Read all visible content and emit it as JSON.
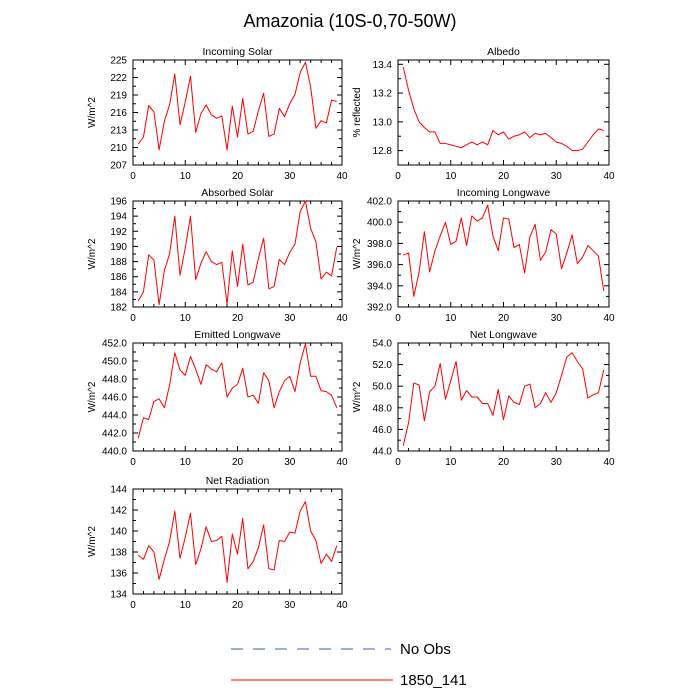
{
  "title": "Amazonia (10S-0,70-50W)",
  "legend": [
    {
      "label": "No Obs",
      "style": "dashed",
      "color": "#3b5bc4"
    },
    {
      "label": "1850_141",
      "style": "solid",
      "color": "#ff0000"
    }
  ],
  "chart_data": [
    {
      "type": "line",
      "title": "Incoming Solar",
      "xlabel": "",
      "ylabel": "W/m^2",
      "xlim": [
        0,
        40
      ],
      "xticks": [
        0,
        10,
        20,
        30,
        40
      ],
      "xtick_labels": [
        "0",
        "10",
        "20",
        "30",
        "40"
      ],
      "ylim": [
        207,
        225
      ],
      "yticks": [
        207,
        210,
        213,
        216,
        219,
        222,
        225
      ],
      "ytick_labels": [
        "207",
        "210",
        "213",
        "216",
        "219",
        "222",
        "225"
      ],
      "x": [
        1,
        2,
        3,
        4,
        5,
        6,
        7,
        8,
        9,
        10,
        11,
        12,
        13,
        14,
        15,
        16,
        17,
        18,
        19,
        20,
        21,
        22,
        23,
        24,
        25,
        26,
        27,
        28,
        29,
        30,
        31,
        32,
        33,
        34,
        35,
        36,
        37,
        38,
        39
      ],
      "series": [
        {
          "name": "1850_141",
          "values": [
            210.6,
            211.8,
            217.2,
            216.1,
            209.6,
            214.5,
            217.3,
            222.6,
            213.9,
            217.8,
            222.2,
            212.6,
            215.8,
            217.3,
            215.6,
            215.0,
            215.4,
            209.6,
            217.1,
            211.8,
            218.4,
            212.3,
            212.8,
            216.3,
            219.3,
            211.9,
            212.3,
            216.7,
            215.3,
            217.5,
            219.1,
            222.9,
            224.6,
            220.4,
            213.3,
            214.6,
            214.2,
            218.1,
            217.9
          ]
        }
      ]
    },
    {
      "type": "line",
      "title": "Albedo",
      "xlabel": "",
      "ylabel": "% reflected",
      "xlim": [
        0,
        40
      ],
      "xticks": [
        0,
        10,
        20,
        30,
        40
      ],
      "xtick_labels": [
        "0",
        "10",
        "20",
        "30",
        "40"
      ],
      "ylim": [
        12.7,
        13.43
      ],
      "yticks": [
        12.8,
        13.0,
        13.2,
        13.4
      ],
      "ytick_labels": [
        "12.8",
        "13.0",
        "13.2",
        "13.4"
      ],
      "x": [
        1,
        2,
        3,
        4,
        5,
        6,
        7,
        8,
        9,
        10,
        11,
        12,
        13,
        14,
        15,
        16,
        17,
        18,
        19,
        20,
        21,
        22,
        23,
        24,
        25,
        26,
        27,
        28,
        29,
        30,
        31,
        32,
        33,
        34,
        35,
        36,
        37,
        38,
        39
      ],
      "series": [
        {
          "name": "1850_141",
          "values": [
            13.38,
            13.22,
            13.09,
            13.0,
            12.96,
            12.93,
            12.93,
            12.85,
            12.85,
            12.84,
            12.83,
            12.82,
            12.84,
            12.86,
            12.84,
            12.86,
            12.84,
            12.94,
            12.91,
            12.93,
            12.88,
            12.9,
            12.91,
            12.93,
            12.89,
            12.92,
            12.91,
            12.92,
            12.89,
            12.86,
            12.85,
            12.83,
            12.8,
            12.8,
            12.81,
            12.86,
            12.91,
            12.95,
            12.94
          ]
        }
      ]
    },
    {
      "type": "line",
      "title": "Absorbed Solar",
      "xlabel": "",
      "ylabel": "W/m^2",
      "xlim": [
        0,
        40
      ],
      "xticks": [
        0,
        10,
        20,
        30,
        40
      ],
      "xtick_labels": [
        "0",
        "10",
        "20",
        "30",
        "40"
      ],
      "ylim": [
        182,
        196
      ],
      "yticks": [
        182,
        184,
        186,
        188,
        190,
        192,
        194,
        196
      ],
      "ytick_labels": [
        "182",
        "184",
        "186",
        "188",
        "190",
        "192",
        "194",
        "196"
      ],
      "x": [
        1,
        2,
        3,
        4,
        5,
        6,
        7,
        8,
        9,
        10,
        11,
        12,
        13,
        14,
        15,
        16,
        17,
        18,
        19,
        20,
        21,
        22,
        23,
        24,
        25,
        26,
        27,
        28,
        29,
        30,
        31,
        32,
        33,
        34,
        35,
        36,
        37,
        38,
        39
      ],
      "series": [
        {
          "name": "1850_141",
          "values": [
            182.8,
            184.0,
            188.9,
            188.2,
            182.3,
            186.8,
            189.0,
            194.0,
            186.2,
            189.8,
            194.0,
            185.6,
            187.8,
            189.3,
            188.0,
            187.6,
            187.9,
            182.4,
            189.4,
            184.7,
            190.3,
            184.9,
            185.3,
            188.4,
            191.1,
            184.4,
            184.7,
            188.3,
            187.6,
            189.2,
            190.3,
            194.6,
            196.0,
            192.4,
            190.6,
            185.7,
            186.6,
            186.1,
            189.9
          ]
        }
      ]
    },
    {
      "type": "line",
      "title": "Incoming Longwave",
      "xlabel": "",
      "ylabel": "W/m^2",
      "xlim": [
        0,
        40
      ],
      "xticks": [
        0,
        10,
        20,
        30,
        40
      ],
      "xtick_labels": [
        "0",
        "10",
        "20",
        "30",
        "40"
      ],
      "ylim": [
        392,
        402
      ],
      "yticks": [
        392.0,
        394.0,
        396.0,
        398.0,
        400.0,
        402.0
      ],
      "ytick_labels": [
        "392.0",
        "394.0",
        "396.0",
        "398.0",
        "400.0",
        "402.0"
      ],
      "x": [
        1,
        2,
        3,
        4,
        5,
        6,
        7,
        8,
        9,
        10,
        11,
        12,
        13,
        14,
        15,
        16,
        17,
        18,
        19,
        20,
        21,
        22,
        23,
        24,
        25,
        26,
        27,
        28,
        29,
        30,
        31,
        32,
        33,
        34,
        35,
        36,
        37,
        38,
        39
      ],
      "series": [
        {
          "name": "1850_141",
          "values": [
            396.9,
            397.1,
            393.0,
            395.3,
            399.1,
            395.3,
            397.3,
            398.7,
            400.0,
            397.9,
            398.2,
            400.4,
            397.8,
            400.6,
            400.1,
            400.4,
            401.6,
            398.7,
            397.3,
            400.4,
            400.3,
            397.6,
            397.9,
            395.2,
            398.6,
            399.8,
            396.4,
            397.2,
            399.3,
            398.9,
            395.6,
            397.1,
            398.8,
            396.1,
            396.7,
            397.8,
            397.3,
            396.8,
            393.5
          ]
        }
      ]
    },
    {
      "type": "line",
      "title": "Emitted Longwave",
      "xlabel": "",
      "ylabel": "W/m^2",
      "xlim": [
        0,
        40
      ],
      "xticks": [
        0,
        10,
        20,
        30,
        40
      ],
      "xtick_labels": [
        "0",
        "10",
        "20",
        "30",
        "40"
      ],
      "ylim": [
        440,
        452
      ],
      "yticks": [
        440.0,
        442.0,
        444.0,
        446.0,
        448.0,
        450.0,
        452.0
      ],
      "ytick_labels": [
        "440.0",
        "442.0",
        "444.0",
        "446.0",
        "448.0",
        "450.0",
        "452.0"
      ],
      "x": [
        1,
        2,
        3,
        4,
        5,
        6,
        7,
        8,
        9,
        10,
        11,
        12,
        13,
        14,
        15,
        16,
        17,
        18,
        19,
        20,
        21,
        22,
        23,
        24,
        25,
        26,
        27,
        28,
        29,
        30,
        31,
        32,
        33,
        34,
        35,
        36,
        37,
        38,
        39
      ],
      "series": [
        {
          "name": "1850_141",
          "values": [
            441.4,
            443.7,
            443.5,
            445.5,
            445.8,
            444.8,
            447.3,
            450.9,
            449.0,
            448.4,
            450.5,
            449.1,
            447.4,
            449.6,
            449.1,
            448.8,
            449.8,
            446.0,
            447.0,
            447.4,
            449.2,
            446.0,
            446.2,
            445.3,
            448.7,
            447.8,
            444.8,
            446.6,
            447.8,
            448.3,
            446.6,
            449.8,
            451.9,
            448.3,
            448.3,
            446.7,
            446.6,
            446.2,
            444.8
          ]
        }
      ]
    },
    {
      "type": "line",
      "title": "Net Longwave",
      "xlabel": "",
      "ylabel": "W/m^2",
      "xlim": [
        0,
        40
      ],
      "xticks": [
        0,
        10,
        20,
        30,
        40
      ],
      "xtick_labels": [
        "0",
        "10",
        "20",
        "30",
        "40"
      ],
      "ylim": [
        44,
        54
      ],
      "yticks": [
        44.0,
        46.0,
        48.0,
        50.0,
        52.0,
        54.0
      ],
      "ytick_labels": [
        "44.0",
        "46.0",
        "48.0",
        "50.0",
        "52.0",
        "54.0"
      ],
      "x": [
        1,
        2,
        3,
        4,
        5,
        6,
        7,
        8,
        9,
        10,
        11,
        12,
        13,
        14,
        15,
        16,
        17,
        18,
        19,
        20,
        21,
        22,
        23,
        24,
        25,
        26,
        27,
        28,
        29,
        30,
        31,
        32,
        33,
        34,
        35,
        36,
        37,
        38,
        39
      ],
      "series": [
        {
          "name": "1850_141",
          "values": [
            44.5,
            46.6,
            50.3,
            50.1,
            46.8,
            49.5,
            50.0,
            52.1,
            48.8,
            50.5,
            52.3,
            48.7,
            49.6,
            49.0,
            49.0,
            48.4,
            48.4,
            47.3,
            49.7,
            46.9,
            49.1,
            48.5,
            48.3,
            50.0,
            50.2,
            48.0,
            48.4,
            49.4,
            48.5,
            49.4,
            51.0,
            52.7,
            53.1,
            52.3,
            51.6,
            48.9,
            49.2,
            49.4,
            51.5
          ]
        }
      ]
    },
    {
      "type": "line",
      "title": "Net Radiation",
      "xlabel": "",
      "ylabel": "W/m^2",
      "xlim": [
        0,
        40
      ],
      "xticks": [
        0,
        10,
        20,
        30,
        40
      ],
      "xtick_labels": [
        "0",
        "10",
        "20",
        "30",
        "40"
      ],
      "ylim": [
        134,
        144
      ],
      "yticks": [
        134,
        136,
        138,
        140,
        142,
        144
      ],
      "ytick_labels": [
        "134",
        "136",
        "138",
        "140",
        "142",
        "144"
      ],
      "x": [
        1,
        2,
        3,
        4,
        5,
        6,
        7,
        8,
        9,
        10,
        11,
        12,
        13,
        14,
        15,
        16,
        17,
        18,
        19,
        20,
        21,
        22,
        23,
        24,
        25,
        26,
        27,
        28,
        29,
        30,
        31,
        32,
        33,
        34,
        35,
        36,
        37,
        38,
        39
      ],
      "series": [
        {
          "name": "1850_141",
          "values": [
            137.7,
            137.3,
            138.6,
            138.0,
            135.4,
            137.3,
            139.0,
            141.9,
            137.4,
            139.4,
            141.7,
            136.8,
            138.3,
            140.4,
            139.0,
            139.1,
            139.5,
            135.1,
            139.7,
            137.8,
            141.2,
            136.4,
            137.1,
            138.4,
            140.6,
            136.4,
            136.3,
            139.1,
            139.0,
            139.9,
            139.8,
            141.9,
            142.8,
            140.0,
            139.1,
            136.9,
            137.8,
            137.1,
            138.6
          ]
        }
      ]
    }
  ]
}
